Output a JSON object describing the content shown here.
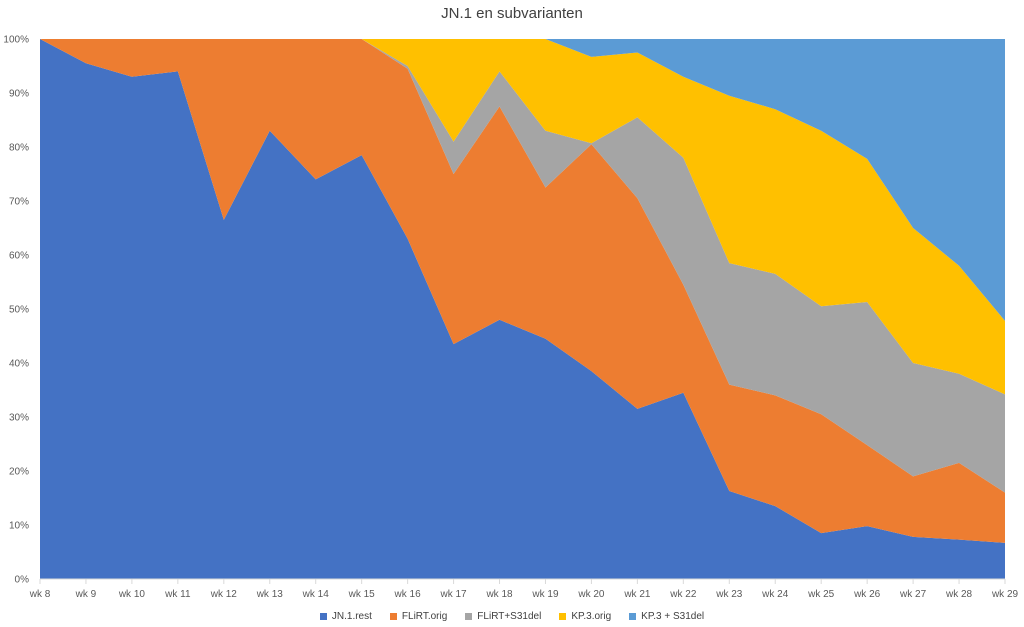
{
  "chart_data": {
    "type": "area",
    "stacked": "percent",
    "title": "JN.1 en subvarianten",
    "xlabel": "",
    "ylabel": "",
    "ylim": [
      0,
      100
    ],
    "y_ticks": [
      "0%",
      "10%",
      "20%",
      "30%",
      "40%",
      "50%",
      "60%",
      "70%",
      "80%",
      "90%",
      "100%"
    ],
    "categories": [
      "wk 8",
      "wk 9",
      "wk 10",
      "wk 11",
      "wk 12",
      "wk 13",
      "wk 14",
      "wk 15",
      "wk 16",
      "wk 17",
      "wk 18",
      "wk 19",
      "wk 20",
      "wk 21",
      "wk 22",
      "wk 23",
      "wk 24",
      "wk 25",
      "wk 26",
      "wk 27",
      "wk 28",
      "wk 29"
    ],
    "grid": false,
    "legend_position": "bottom",
    "series": [
      {
        "name": "JN.1.rest",
        "color": "#4472C4",
        "values": [
          100,
          95.5,
          93,
          94,
          66.5,
          83,
          74,
          78.5,
          63,
          43.5,
          48,
          44.5,
          38.5,
          31.5,
          34.5,
          16.3,
          13.5,
          8.5,
          9.8,
          7.8,
          7.3,
          6.7
        ]
      },
      {
        "name": "FLiRT.orig",
        "color": "#ED7D31",
        "values": [
          0,
          4.5,
          7,
          6,
          33.5,
          17,
          26,
          21.5,
          31.5,
          31.5,
          39.5,
          28,
          42,
          39,
          20,
          19.7,
          20.5,
          22,
          15,
          11.2,
          14.2,
          9.3
        ]
      },
      {
        "name": "FLiRT+S31del",
        "color": "#A5A5A5",
        "values": [
          0,
          0,
          0,
          0,
          0,
          0,
          0,
          0,
          0.5,
          6,
          6.5,
          10.5,
          0.2,
          15,
          23.5,
          22.5,
          22.5,
          20,
          26.5,
          21,
          16.5,
          18.2
        ]
      },
      {
        "name": "KP.3.orig",
        "color": "#FFC000",
        "values": [
          0,
          0,
          0,
          0,
          0,
          0,
          0,
          0,
          5,
          19,
          6,
          17,
          16,
          12,
          15,
          31,
          30.5,
          32.5,
          26.5,
          25,
          20,
          13.6
        ]
      },
      {
        "name": "KP.3 + S31del",
        "color": "#5B9BD5",
        "values": [
          0,
          0,
          0,
          0,
          0,
          0,
          0,
          0,
          0,
          0,
          0,
          0,
          3.3,
          2.5,
          7,
          10.5,
          13,
          17,
          22.2,
          35,
          42,
          52.2
        ]
      }
    ]
  }
}
